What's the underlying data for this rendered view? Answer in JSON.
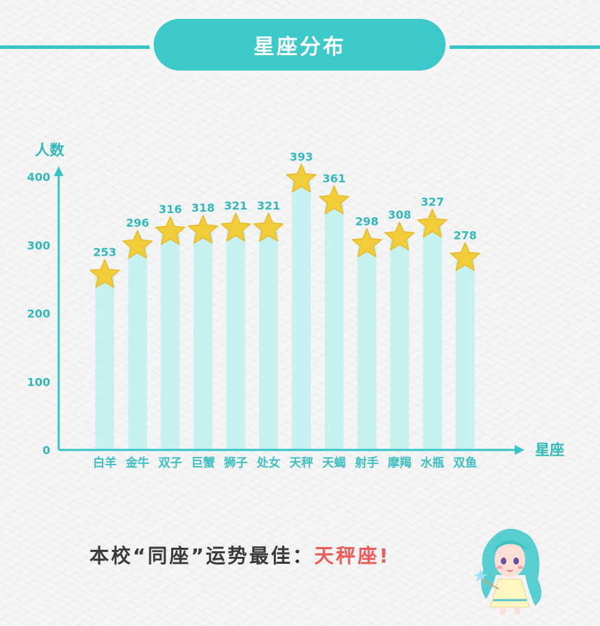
{
  "title": "星座分布",
  "chart_data": {
    "type": "bar",
    "categories": [
      "白羊",
      "金牛",
      "双子",
      "巨蟹",
      "狮子",
      "处女",
      "天秤",
      "天蝎",
      "射手",
      "摩羯",
      "水瓶",
      "双鱼"
    ],
    "values": [
      253,
      296,
      316,
      318,
      321,
      321,
      393,
      361,
      298,
      308,
      327,
      278
    ],
    "ylabel": "人数",
    "xlabel": "星座",
    "ylim": [
      0,
      400
    ],
    "yticks": [
      0,
      100,
      200,
      300,
      400
    ],
    "bar_color": "#c6f1f1",
    "axis_color": "#36c6c8",
    "marker_color": "#f2cd3a",
    "marker": "star-icon",
    "grid": false
  },
  "footer": {
    "text": "本校“同座”运势最佳：",
    "highlight": "天秤座!",
    "highlight_color": "#ec5b57"
  }
}
